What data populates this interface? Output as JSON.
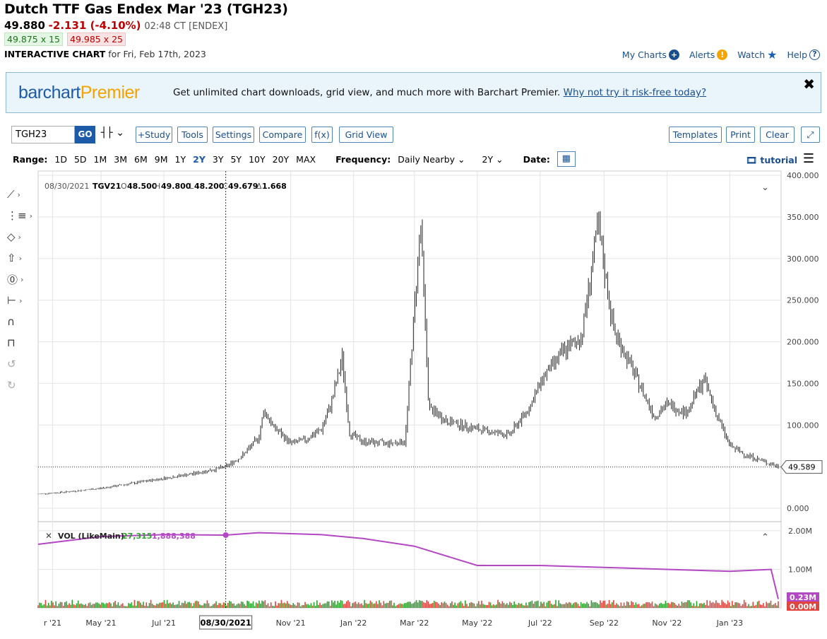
{
  "header": {
    "title": "Dutch TTF Gas Endex Mar '23 (TGH23)",
    "last": "49.880",
    "change": "-2.131 (-4.10%)",
    "time": "02:48 CT [ENDEX]",
    "bid": "49.875 x 15",
    "ask": "49.985 x 25",
    "chart_label": "INTERACTIVE CHART",
    "chart_date": "for Fri, Feb 17th, 2023"
  },
  "links": {
    "my_charts": "My Charts",
    "alerts": "Alerts",
    "watch": "Watch",
    "help": "Help"
  },
  "banner": {
    "logo_a": "barchart",
    "logo_b": "Premier",
    "text": "Get unlimited chart downloads, grid view, and much more with Barchart Premier.",
    "link": "Why not try it risk-free today?",
    "close": "✖"
  },
  "toolbar": {
    "symbol": "TGH23",
    "go": "GO",
    "study": "+Study",
    "tools": "Tools",
    "settings": "Settings",
    "compare": "Compare",
    "fx": "f(x)",
    "grid_view": "Grid View",
    "templates": "Templates",
    "print": "Print",
    "clear": "Clear"
  },
  "range": {
    "label": "Range:",
    "options": [
      "1D",
      "5D",
      "1M",
      "3M",
      "6M",
      "9M",
      "1Y",
      "2Y",
      "3Y",
      "5Y",
      "10Y",
      "20Y",
      "MAX"
    ],
    "selected": "2Y",
    "frequency_label": "Frequency:",
    "frequency": "Daily Nearby",
    "period": "2Y",
    "date_label": "Date:",
    "tutorial": "tutorial"
  },
  "chart_data": {
    "type": "ohlc",
    "legend": {
      "date": "08/30/2021",
      "symbol": "TGV21",
      "o_label": "O",
      "o": "48.500",
      "h_label": "H",
      "h": "49.800",
      "l_label": "L",
      "l": "48.200",
      "c_label": "C",
      "c": "49.679",
      "d_label": "Δ",
      "d": "1.668"
    },
    "y_ticks": [
      "400.000",
      "350.000",
      "300.000",
      "250.000",
      "200.000",
      "150.000",
      "100.000",
      "0.000"
    ],
    "last_price": "49.589",
    "ylim": [
      0,
      400
    ],
    "x_ticks": [
      "r '21",
      "May '21",
      "Jul '21",
      "Nov '21",
      "Jan '22",
      "Mar '22",
      "May '22",
      "Jul '22",
      "Sep '22",
      "Nov '22",
      "Jan '23"
    ],
    "crosshair_date": "08/30/2021",
    "series_close": [
      [
        "2021-03-01",
        17
      ],
      [
        "2021-04-01",
        20
      ],
      [
        "2021-05-01",
        24
      ],
      [
        "2021-06-01",
        30
      ],
      [
        "2021-07-01",
        36
      ],
      [
        "2021-08-01",
        42
      ],
      [
        "2021-08-30",
        49.7
      ],
      [
        "2021-09-15",
        63
      ],
      [
        "2021-10-01",
        85
      ],
      [
        "2021-10-06",
        118
      ],
      [
        "2021-10-15",
        98
      ],
      [
        "2021-11-01",
        78
      ],
      [
        "2021-11-15",
        82
      ],
      [
        "2021-12-01",
        95
      ],
      [
        "2021-12-10",
        125
      ],
      [
        "2021-12-21",
        180
      ],
      [
        "2021-12-28",
        90
      ],
      [
        "2022-01-10",
        80
      ],
      [
        "2022-02-01",
        78
      ],
      [
        "2022-02-20",
        80
      ],
      [
        "2022-03-07",
        345
      ],
      [
        "2022-03-15",
        120
      ],
      [
        "2022-04-01",
        105
      ],
      [
        "2022-05-01",
        95
      ],
      [
        "2022-06-01",
        88
      ],
      [
        "2022-06-20",
        120
      ],
      [
        "2022-07-05",
        160
      ],
      [
        "2022-07-25",
        190
      ],
      [
        "2022-08-10",
        205
      ],
      [
        "2022-08-26",
        340
      ],
      [
        "2022-09-10",
        215
      ],
      [
        "2022-10-01",
        160
      ],
      [
        "2022-10-20",
        110
      ],
      [
        "2022-11-01",
        125
      ],
      [
        "2022-11-20",
        115
      ],
      [
        "2022-12-07",
        155
      ],
      [
        "2022-12-20",
        110
      ],
      [
        "2023-01-01",
        75
      ],
      [
        "2023-01-15",
        65
      ],
      [
        "2023-02-01",
        57
      ],
      [
        "2023-02-17",
        49.9
      ]
    ],
    "vol_legend": {
      "label": "VOL (LikeMain)",
      "value1": "27,315",
      "value2": "1,888,388"
    },
    "vol_ticks": [
      "2.00M",
      "1.00M"
    ],
    "vol_last": "0.23M",
    "vol_zero": "0.00M",
    "vol_ylim": [
      0,
      2200000
    ],
    "open_interest": [
      [
        "2021-03-01",
        1650000
      ],
      [
        "2021-05-01",
        1850000
      ],
      [
        "2021-07-01",
        1900000
      ],
      [
        "2021-08-30",
        1888388
      ],
      [
        "2021-10-01",
        1950000
      ],
      [
        "2021-12-01",
        1900000
      ],
      [
        "2022-01-10",
        1800000
      ],
      [
        "2022-03-01",
        1600000
      ],
      [
        "2022-05-01",
        1100000
      ],
      [
        "2022-07-01",
        1100000
      ],
      [
        "2022-09-01",
        1050000
      ],
      [
        "2022-11-01",
        1000000
      ],
      [
        "2023-01-01",
        950000
      ],
      [
        "2023-02-10",
        1000000
      ],
      [
        "2023-02-17",
        230000
      ]
    ],
    "colors": {
      "up": "#2ca02c",
      "down": "#e0443c",
      "oi": "#b347c4",
      "price": "#222222"
    }
  }
}
